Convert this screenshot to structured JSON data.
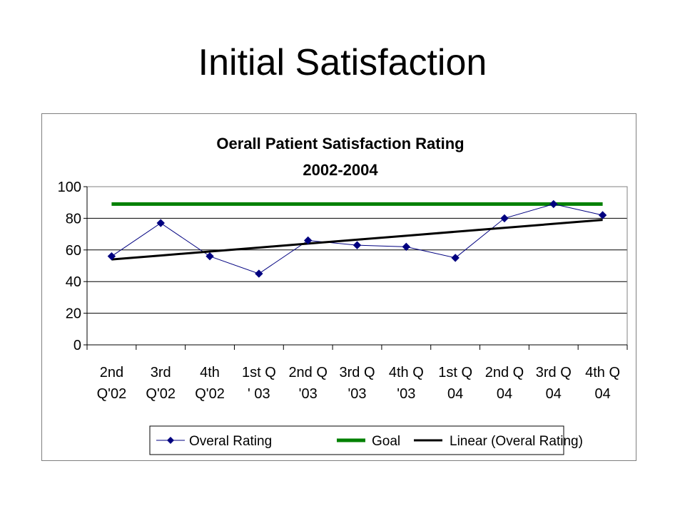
{
  "slide": {
    "title": "Initial Satisfaction"
  },
  "chart_data": {
    "type": "line",
    "title": "Oerall Patient Satisfaction Rating",
    "subtitle": "2002-2004",
    "categories": [
      [
        "2nd",
        "Q'02"
      ],
      [
        "3rd",
        "Q'02"
      ],
      [
        "4th",
        "Q'02"
      ],
      [
        "1st Q",
        "' 03"
      ],
      [
        "2nd Q",
        "'03"
      ],
      [
        "3rd Q",
        "'03"
      ],
      [
        "4th Q",
        "'03"
      ],
      [
        "1st Q",
        "04"
      ],
      [
        "2nd Q",
        "04"
      ],
      [
        "3rd Q",
        "04"
      ],
      [
        "4th Q",
        "04"
      ]
    ],
    "ylim": [
      0,
      100
    ],
    "yticks": [
      0,
      20,
      40,
      60,
      80,
      100
    ],
    "grid": true,
    "legend_position": "bottom",
    "series": [
      {
        "name": "Overal Rating",
        "color": "#000080",
        "marker": "diamond",
        "values": [
          56,
          77,
          56,
          45,
          66,
          63,
          62,
          55,
          80,
          89,
          82
        ]
      },
      {
        "name": "Goal",
        "color": "#008000",
        "values": [
          89,
          89,
          89,
          89,
          89,
          89,
          89,
          89,
          89,
          89,
          89
        ]
      },
      {
        "name": "Linear (Overal Rating)",
        "color": "#000000",
        "type": "trendline",
        "values": [
          54,
          56.5,
          59,
          61.5,
          64,
          66.5,
          69,
          71.5,
          74,
          76.5,
          79
        ]
      }
    ]
  }
}
